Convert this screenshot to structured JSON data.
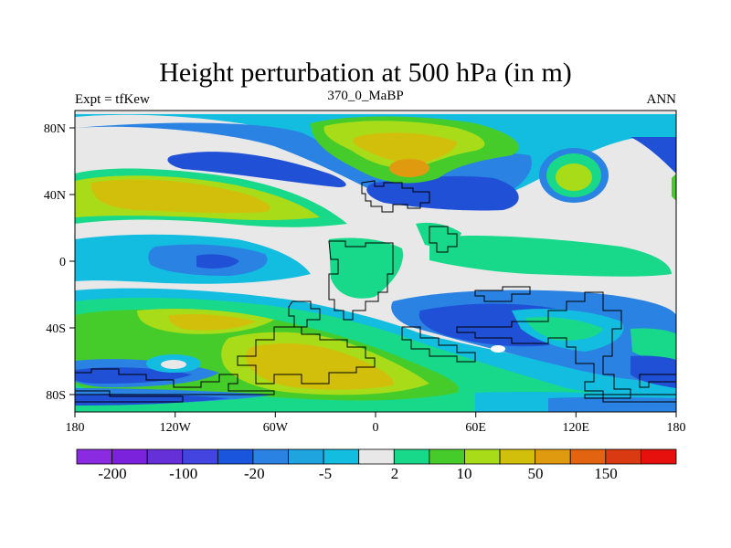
{
  "title": "Height perturbation at 500 hPa (in m)",
  "left_string": "Expt = tfKew",
  "center_string": "370_0_MaBP",
  "right_string": "ANN",
  "x_ticks": [
    "180",
    "120W",
    "60W",
    "0",
    "60E",
    "120E",
    "180"
  ],
  "y_ticks": [
    "80N",
    "40N",
    "0",
    "40S",
    "80S"
  ],
  "colorbar": {
    "colors": [
      "#8a2be2",
      "#7b22dd",
      "#6530d8",
      "#4444e0",
      "#1a55dd",
      "#2a82e3",
      "#1fa4df",
      "#12bde0",
      "#e8e8e8",
      "#18d98a",
      "#46cc2a",
      "#a8dc18",
      "#d2bf0c",
      "#e09a10",
      "#e26410",
      "#d93a12",
      "#e6100d"
    ],
    "labels": [
      "-200",
      "-100",
      "-20",
      "-5",
      "2",
      "10",
      "50",
      "150"
    ]
  },
  "colors": {
    "blue_dark": "#1f50d6",
    "blue": "#2a82e3",
    "cyan": "#12bde0",
    "neutral": "#e8e8e8",
    "teal_green": "#18d98a",
    "green": "#46cc2a",
    "yellow_green": "#a8dc18",
    "olive": "#d2bf0c",
    "orange": "#e09a10"
  }
}
